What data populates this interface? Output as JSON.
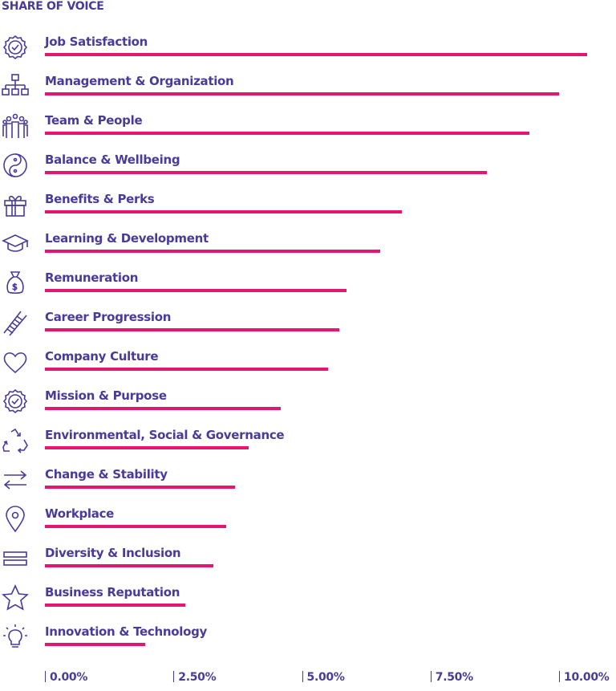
{
  "chart_data": {
    "type": "bar",
    "orientation": "horizontal",
    "title": "SHARE OF VOICE",
    "xlabel": "",
    "ylabel": "",
    "xlim": [
      0,
      10.6
    ],
    "x_ticks": [
      0,
      2.5,
      5,
      7.5,
      10
    ],
    "x_tick_labels": [
      "0.00%",
      "2.50%",
      "5.00%",
      "7.50%",
      "10.00%"
    ],
    "bar_color": "#e5166f",
    "text_color": "#4b3a9a",
    "categories": [
      {
        "label": "Job Satisfaction",
        "icon": "badge-check-icon",
        "value": 10.55
      },
      {
        "label": "Management & Organization",
        "icon": "org-chart-icon",
        "value": 10.0
      },
      {
        "label": "Team & People",
        "icon": "people-icon",
        "value": 9.42
      },
      {
        "label": "Balance & Wellbeing",
        "icon": "yin-yang-icon",
        "value": 8.59
      },
      {
        "label": "Benefits & Perks",
        "icon": "gift-icon",
        "value": 6.94
      },
      {
        "label": "Learning & Development",
        "icon": "graduation-cap-icon",
        "value": 6.52
      },
      {
        "label": "Remuneration",
        "icon": "money-bag-icon",
        "value": 5.86
      },
      {
        "label": "Career Progression",
        "icon": "ladder-icon",
        "value": 5.73
      },
      {
        "label": "Company Culture",
        "icon": "heart-icon",
        "value": 5.5
      },
      {
        "label": "Mission & Purpose",
        "icon": "badge-check-icon",
        "value": 4.59
      },
      {
        "label": "Environmental, Social & Governance",
        "icon": "recycle-icon",
        "value": 3.97
      },
      {
        "label": "Change & Stability",
        "icon": "arrows-exchange-icon",
        "value": 3.7
      },
      {
        "label": "Workplace",
        "icon": "map-pin-icon",
        "value": 3.52
      },
      {
        "label": "Diversity & Inclusion",
        "icon": "equals-icon",
        "value": 3.27
      },
      {
        "label": "Business Reputation",
        "icon": "star-icon",
        "value": 2.73
      },
      {
        "label": "Innovation & Technology",
        "icon": "lightbulb-icon",
        "value": 1.95
      }
    ]
  }
}
